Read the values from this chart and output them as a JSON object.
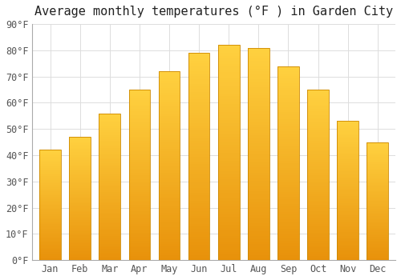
{
  "title": "Average monthly temperatures (°F ) in Garden City",
  "months": [
    "Jan",
    "Feb",
    "Mar",
    "Apr",
    "May",
    "Jun",
    "Jul",
    "Aug",
    "Sep",
    "Oct",
    "Nov",
    "Dec"
  ],
  "values": [
    42,
    47,
    56,
    65,
    72,
    79,
    82,
    81,
    74,
    65,
    53,
    45
  ],
  "ylim": [
    0,
    90
  ],
  "yticks": [
    0,
    10,
    20,
    30,
    40,
    50,
    60,
    70,
    80,
    90
  ],
  "ytick_labels": [
    "0°F",
    "10°F",
    "20°F",
    "30°F",
    "40°F",
    "50°F",
    "60°F",
    "70°F",
    "80°F",
    "90°F"
  ],
  "background_color": "#FFFFFF",
  "grid_color": "#DDDDDD",
  "bar_color_bottom": "#E8920A",
  "bar_color_top": "#FFD040",
  "bar_border_color": "#CC8800",
  "title_fontsize": 11,
  "tick_fontsize": 8.5,
  "bar_width": 0.72
}
